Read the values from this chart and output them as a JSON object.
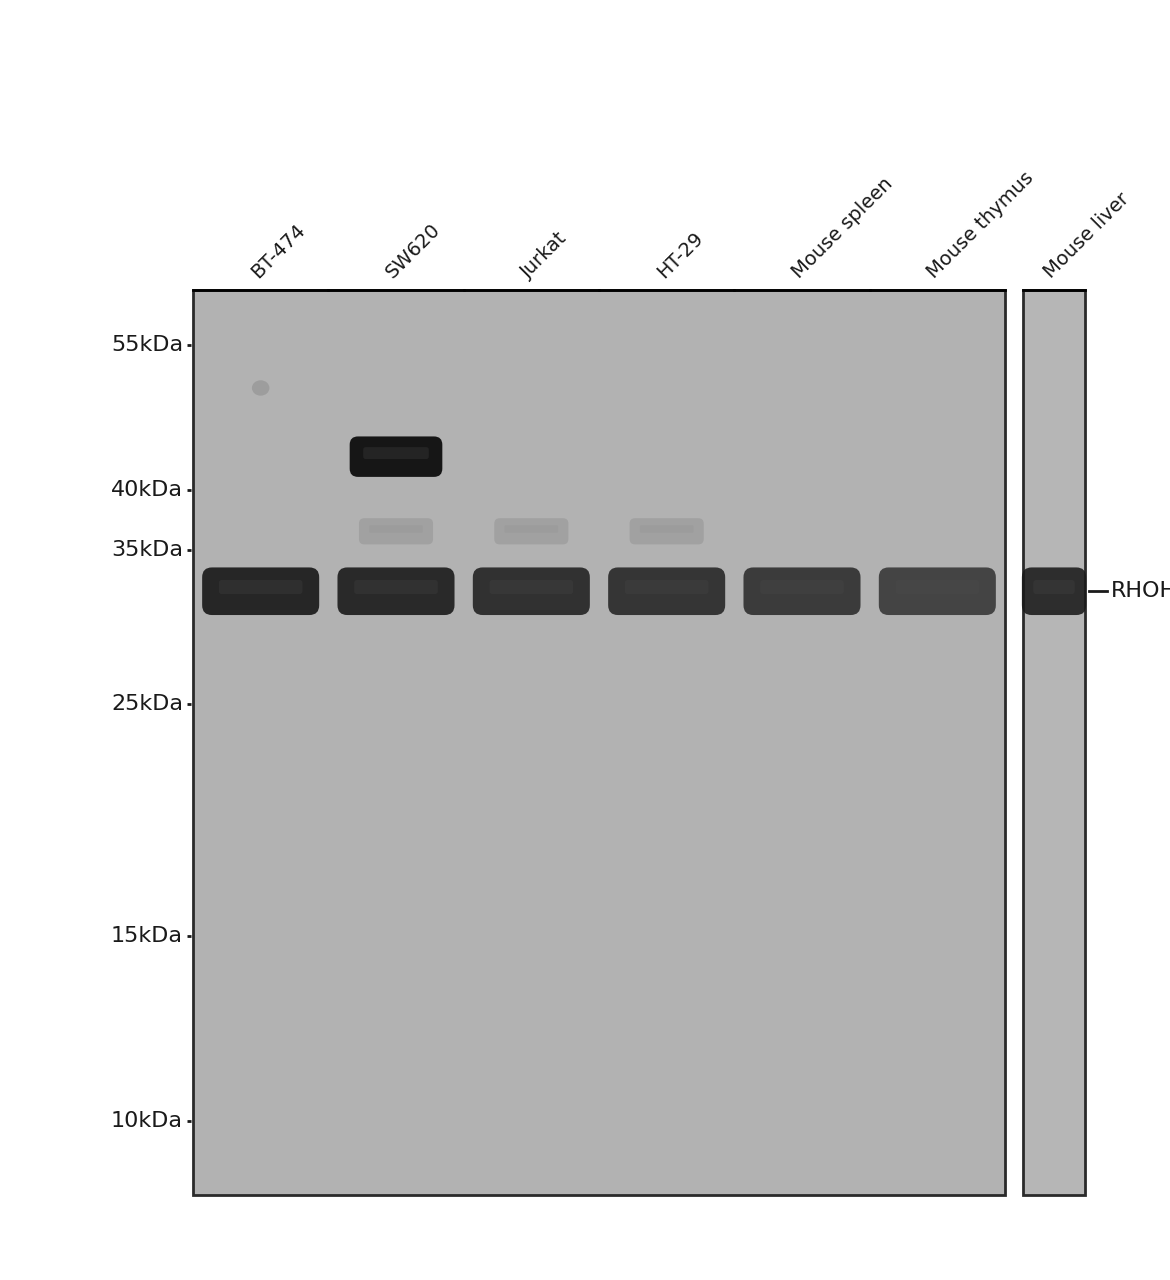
{
  "white_bg": "#ffffff",
  "gel_bg": "#b0b0b0",
  "gel_bg2": "#b8b8b8",
  "lane_labels": [
    "BT-474",
    "SW620",
    "Jurkat",
    "HT-29",
    "Mouse spleen",
    "Mouse thymus",
    "Mouse liver"
  ],
  "mw_markers": [
    "55kDa—",
    "40kDa—",
    "35kDa—",
    "25kDa—",
    "15kDa—",
    "10kDa—"
  ],
  "mw_labels_plain": [
    "55kDa",
    "40kDa",
    "35kDa",
    "25kDa",
    "15kDa",
    "10kDa"
  ],
  "mw_values": [
    55,
    40,
    35,
    25,
    15,
    10
  ],
  "rhoh_label": "RHOH",
  "main_band_mw": 32,
  "main_band_intensities": [
    0.92,
    0.9,
    0.85,
    0.82,
    0.78,
    0.72,
    0.88
  ],
  "high_band_mw": 43,
  "faint_band_mw": 36.5,
  "artifact_mw": 50,
  "n_panel1_lanes": 6,
  "n_panel2_lanes": 1
}
